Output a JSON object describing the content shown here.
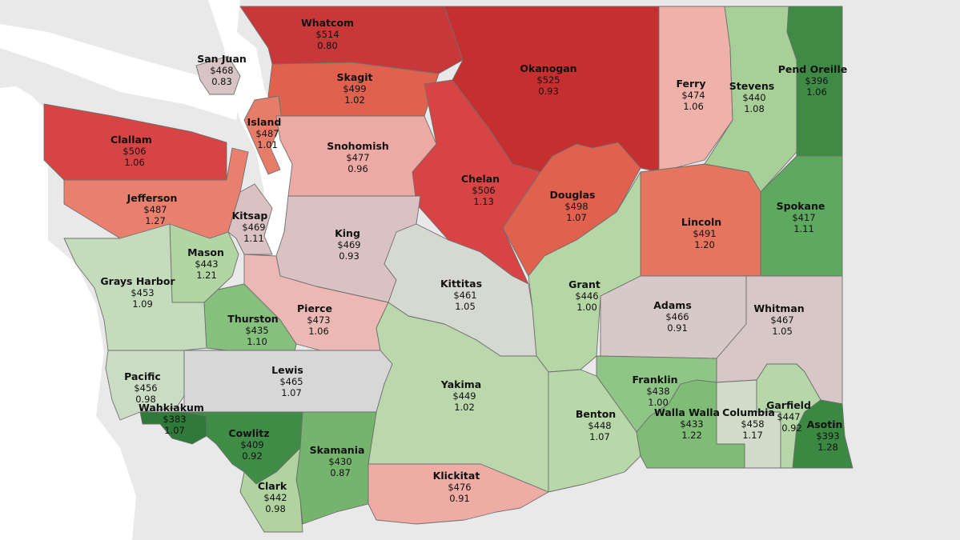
{
  "legend_colors": {
    "high": "#c62f2f",
    "mid": "#d8d2d2",
    "low": "#3d8a45"
  },
  "counties": [
    {
      "name": "Whatcom",
      "price": "$514",
      "ratio": "0.80",
      "color": "#c93838"
    },
    {
      "name": "San Juan",
      "price": "$468",
      "ratio": "0.83",
      "color": "#d8c4c4"
    },
    {
      "name": "Okanogan",
      "price": "$525",
      "ratio": "0.93",
      "color": "#c62f2f"
    },
    {
      "name": "Skagit",
      "price": "$499",
      "ratio": "1.02",
      "color": "#e0614d"
    },
    {
      "name": "Island",
      "price": "$487",
      "ratio": "1.01",
      "color": "#e77c68"
    },
    {
      "name": "Clallam",
      "price": "$506",
      "ratio": "1.06",
      "color": "#d74444"
    },
    {
      "name": "Snohomish",
      "price": "$477",
      "ratio": "0.96",
      "color": "#edaaa4"
    },
    {
      "name": "Ferry",
      "price": "$474",
      "ratio": "1.06",
      "color": "#efb2ab"
    },
    {
      "name": "Stevens",
      "price": "$440",
      "ratio": "1.08",
      "color": "#a8cf98"
    },
    {
      "name": "Pend Oreille",
      "price": "$396",
      "ratio": "1.06",
      "color": "#3f8b46"
    },
    {
      "name": "Jefferson",
      "price": "$487",
      "ratio": "1.27",
      "color": "#e9806d"
    },
    {
      "name": "Chelan",
      "price": "$506",
      "ratio": "1.13",
      "color": "#d84444"
    },
    {
      "name": "Douglas",
      "price": "$498",
      "ratio": "1.07",
      "color": "#e0614e"
    },
    {
      "name": "Kitsap",
      "price": "$469",
      "ratio": "1.11",
      "color": "#dbc2c2"
    },
    {
      "name": "King",
      "price": "$469",
      "ratio": "0.93",
      "color": "#dbc2c2"
    },
    {
      "name": "Lincoln",
      "price": "$491",
      "ratio": "1.20",
      "color": "#e6755f"
    },
    {
      "name": "Spokane",
      "price": "$417",
      "ratio": "1.11",
      "color": "#5da95f"
    },
    {
      "name": "Mason",
      "price": "$443",
      "ratio": "1.21",
      "color": "#b2d6a3"
    },
    {
      "name": "Grays Harbor",
      "price": "$453",
      "ratio": "1.09",
      "color": "#c5dcbc"
    },
    {
      "name": "Kittitas",
      "price": "$461",
      "ratio": "1.05",
      "color": "#d6d8d2"
    },
    {
      "name": "Grant",
      "price": "$446",
      "ratio": "1.00",
      "color": "#b5d7a6"
    },
    {
      "name": "Pierce",
      "price": "$473",
      "ratio": "1.06",
      "color": "#ecb8b3"
    },
    {
      "name": "Thurston",
      "price": "$435",
      "ratio": "1.10",
      "color": "#85c07c"
    },
    {
      "name": "Adams",
      "price": "$466",
      "ratio": "0.91",
      "color": "#d8c9c9"
    },
    {
      "name": "Whitman",
      "price": "$467",
      "ratio": "1.05",
      "color": "#d8c7c7"
    },
    {
      "name": "Pacific",
      "price": "$456",
      "ratio": "0.98",
      "color": "#cbdcc4"
    },
    {
      "name": "Lewis",
      "price": "$465",
      "ratio": "1.07",
      "color": "#d7d7d7"
    },
    {
      "name": "Yakima",
      "price": "$449",
      "ratio": "1.02",
      "color": "#bad8ab"
    },
    {
      "name": "Franklin",
      "price": "$438",
      "ratio": "1.00",
      "color": "#8fc586"
    },
    {
      "name": "Wahkiakum",
      "price": "$383",
      "ratio": "1.07",
      "color": "#2f7a38"
    },
    {
      "name": "Cowlitz",
      "price": "$409",
      "ratio": "0.92",
      "color": "#3f8c47"
    },
    {
      "name": "Benton",
      "price": "$448",
      "ratio": "1.07",
      "color": "#b8d8a9"
    },
    {
      "name": "Walla Walla",
      "price": "$433",
      "ratio": "1.22",
      "color": "#7fbc75"
    },
    {
      "name": "Columbia",
      "price": "$458",
      "ratio": "1.17",
      "color": "#d0dcc9"
    },
    {
      "name": "Garfield",
      "price": "$447",
      "ratio": "0.92",
      "color": "#b6d7a7"
    },
    {
      "name": "Asotin",
      "price": "$393",
      "ratio": "1.28",
      "color": "#3a8842"
    },
    {
      "name": "Skamania",
      "price": "$430",
      "ratio": "0.87",
      "color": "#74b46d"
    },
    {
      "name": "Klickitat",
      "price": "$476",
      "ratio": "0.91",
      "color": "#eeaca5"
    },
    {
      "name": "Clark",
      "price": "$442",
      "ratio": "0.98",
      "color": "#b0d39f"
    }
  ]
}
